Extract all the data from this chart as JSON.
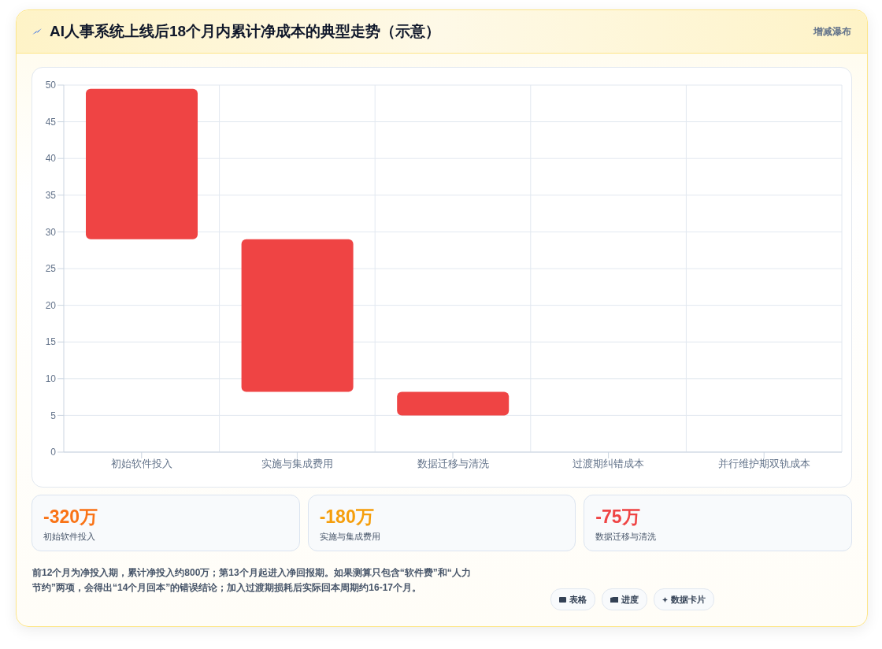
{
  "chart_data": {
    "type": "bar",
    "title": "AI人事系统上线后18个月内累计净成本的典型走势（示意）",
    "subtitle": "增减瀑布",
    "categories": [
      "初始软件投入",
      "实施与集成费用",
      "数据迁移与清洗",
      "过渡期纠错成本",
      "并行维护期双轨成本"
    ],
    "values": [
      20.5,
      20.8,
      3.2,
      null,
      null
    ],
    "base": [
      29,
      8.2,
      5,
      null,
      null
    ],
    "color": "#ef4444",
    "ylim": [
      0,
      50
    ],
    "yticks": [
      0,
      5,
      10,
      15,
      20,
      25,
      30,
      35,
      40,
      45,
      50
    ],
    "grid": true,
    "annotations": [
      "-320万",
      "初始软件投入",
      "-180万",
      "实施与集成费用",
      "-75万",
      "数据迁移与清洗",
      "前12个月为净投入期，累计净投入约800万；第13个月起进入净回报期。如果测算只包含“软件费”和“人力节约”两项，会得出“14个月回本”的错误结论；加入过渡期损耗后实际回本周期约16-17个月。",
      "表格",
      "进度",
      "数据卡片"
    ]
  }
}
